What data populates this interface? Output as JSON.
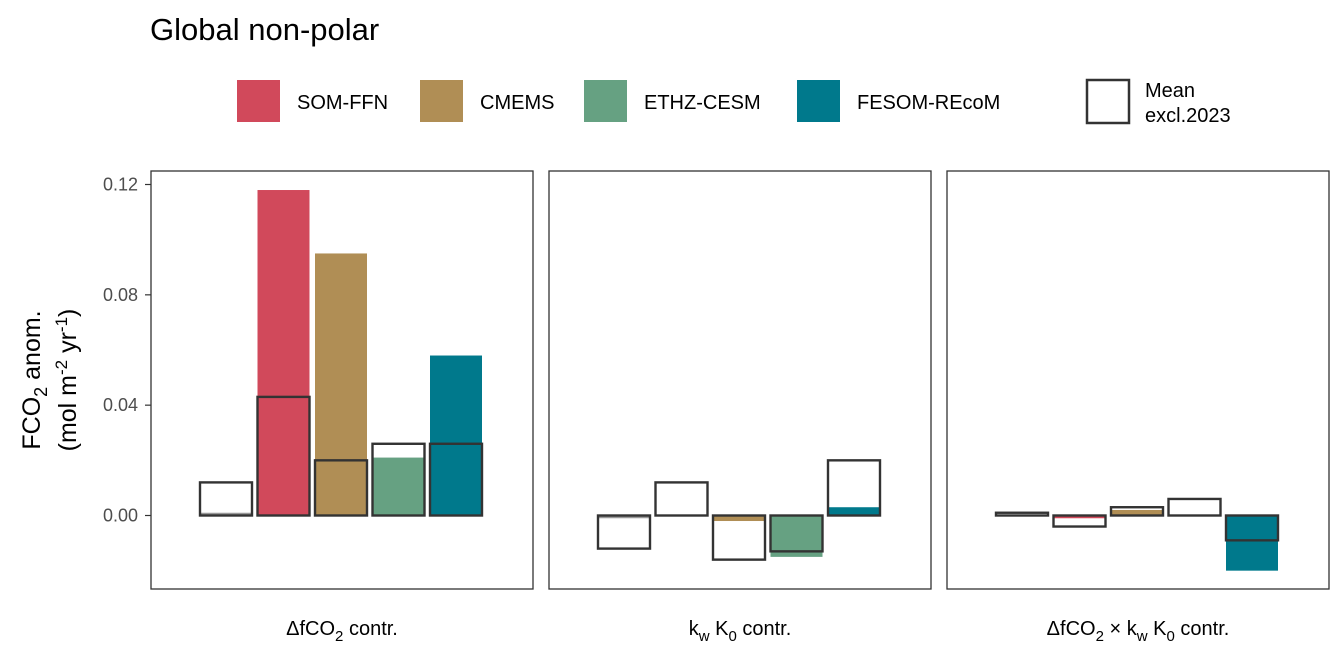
{
  "chart_data": {
    "type": "bar",
    "title": "Global non-polar",
    "ylabel_line1": "FCO",
    "ylabel_line1_sub": "2",
    "ylabel_line1_rest": " anom.",
    "ylabel_line2": "(mol m",
    "ylabel_line2_sup1": "-2",
    "ylabel_line2_mid": " yr",
    "ylabel_line2_sup2": "-1",
    "ylabel_line2_end": ")",
    "ylim": [
      -0.02,
      0.125
    ],
    "yticks": [
      0.0,
      0.04,
      0.08,
      0.12
    ],
    "ytick_labels": [
      "0.00",
      "0.04",
      "0.08",
      "0.12"
    ],
    "legend_position": "top",
    "legend_entries": [
      {
        "label": "SOM-FFN",
        "color": "#D1495B"
      },
      {
        "label": "CMEMS",
        "color": "#B08E55"
      },
      {
        "label": "ETHZ-CESM",
        "color": "#66A182"
      },
      {
        "label": "FESOM-REcoM",
        "color": "#00798C"
      }
    ],
    "mean_legend_line1": "Mean",
    "mean_legend_line2": "excl.2023",
    "products": [
      "Mean",
      "SOM-FFN",
      "CMEMS",
      "ETHZ-CESM",
      "FESOM-REcoM"
    ],
    "product_colors": [
      "#999999",
      "#D1495B",
      "#B08E55",
      "#66A182",
      "#00798C"
    ],
    "panels": [
      {
        "label_parts": [
          {
            "t": "ΔfCO"
          },
          {
            "t": "2",
            "sub": true
          },
          {
            "t": " contr."
          }
        ],
        "values_2023": [
          0.001,
          0.118,
          0.095,
          0.021,
          0.058
        ],
        "values_mean": [
          0.012,
          0.043,
          0.02,
          0.026,
          0.026
        ]
      },
      {
        "label_parts": [
          {
            "t": "k"
          },
          {
            "t": "w",
            "sub": true
          },
          {
            "t": " K"
          },
          {
            "t": "0",
            "sub": true
          },
          {
            "t": " contr."
          }
        ],
        "values_2023": [
          -0.001,
          0.0,
          -0.002,
          -0.015,
          0.003
        ],
        "values_mean": [
          -0.012,
          0.012,
          -0.016,
          -0.013,
          0.02
        ]
      },
      {
        "label_parts": [
          {
            "t": "ΔfCO"
          },
          {
            "t": "2",
            "sub": true
          },
          {
            "t": " × k"
          },
          {
            "t": "w",
            "sub": true
          },
          {
            "t": " K"
          },
          {
            "t": "0",
            "sub": true
          },
          {
            "t": " contr."
          }
        ],
        "values_2023": [
          0.0,
          -0.001,
          0.002,
          0.0,
          -0.02
        ],
        "values_mean": [
          0.001,
          -0.004,
          0.003,
          0.006,
          -0.009
        ]
      }
    ]
  }
}
